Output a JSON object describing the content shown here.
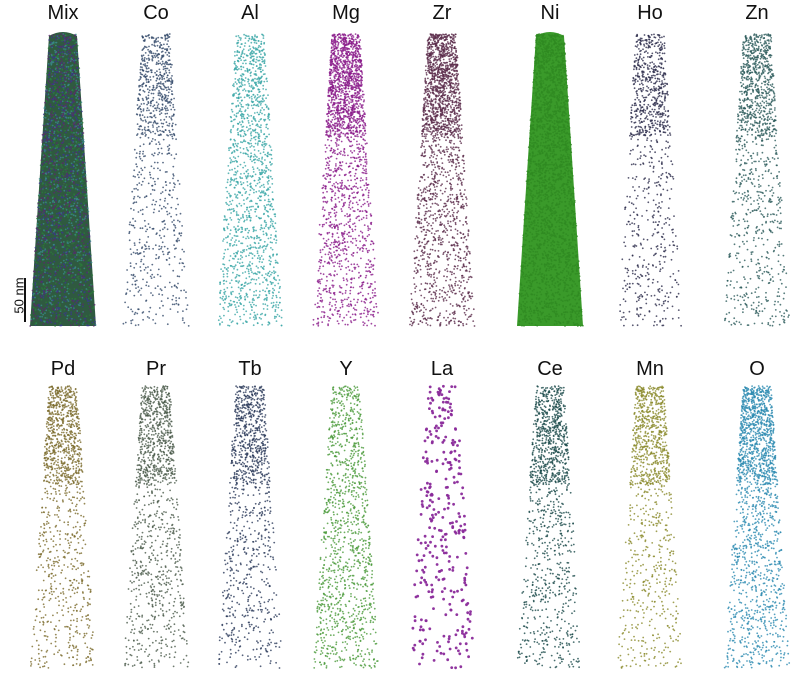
{
  "scale_bar": {
    "label": "50 nm"
  },
  "panels": [
    {
      "label": "Mix",
      "color": "#2e5a3a",
      "density": 1.0,
      "style": "mix"
    },
    {
      "label": "Co",
      "color": "#334a6a",
      "density": 0.35,
      "style": "tipdense"
    },
    {
      "label": "Al",
      "color": "#3aa6a6",
      "density": 0.55,
      "style": "even"
    },
    {
      "label": "Mg",
      "color": "#8a1a8a",
      "density": 0.8,
      "style": "tipdense"
    },
    {
      "label": "Zr",
      "color": "#5a2a4a",
      "density": 0.8,
      "style": "tipdense"
    },
    {
      "label": "Ni",
      "color": "#3a9a2a",
      "density": 1.0,
      "style": "solid"
    },
    {
      "label": "Ho",
      "color": "#2a2a4a",
      "density": 0.35,
      "style": "tipdense"
    },
    {
      "label": "Zn",
      "color": "#2a5a5a",
      "density": 0.45,
      "style": "tipdense"
    },
    {
      "label": "Pd",
      "color": "#7a6a2a",
      "density": 0.45,
      "style": "tipdense"
    },
    {
      "label": "Pr",
      "color": "#4a5a4a",
      "density": 0.45,
      "style": "tipdense"
    },
    {
      "label": "Tb",
      "color": "#2a3a5a",
      "density": 0.4,
      "style": "tipdense"
    },
    {
      "label": "Y",
      "color": "#4a9a3a",
      "density": 0.45,
      "style": "even"
    },
    {
      "label": "La",
      "color": "#8a2a9a",
      "density": 0.12,
      "style": "sparse"
    },
    {
      "label": "Ce",
      "color": "#1a4a4a",
      "density": 0.45,
      "style": "tipdense"
    },
    {
      "label": "Mn",
      "color": "#8a8a2a",
      "density": 0.4,
      "style": "tipdense"
    },
    {
      "label": "O",
      "color": "#2a8ab0",
      "density": 0.65,
      "style": "tipdense"
    }
  ]
}
